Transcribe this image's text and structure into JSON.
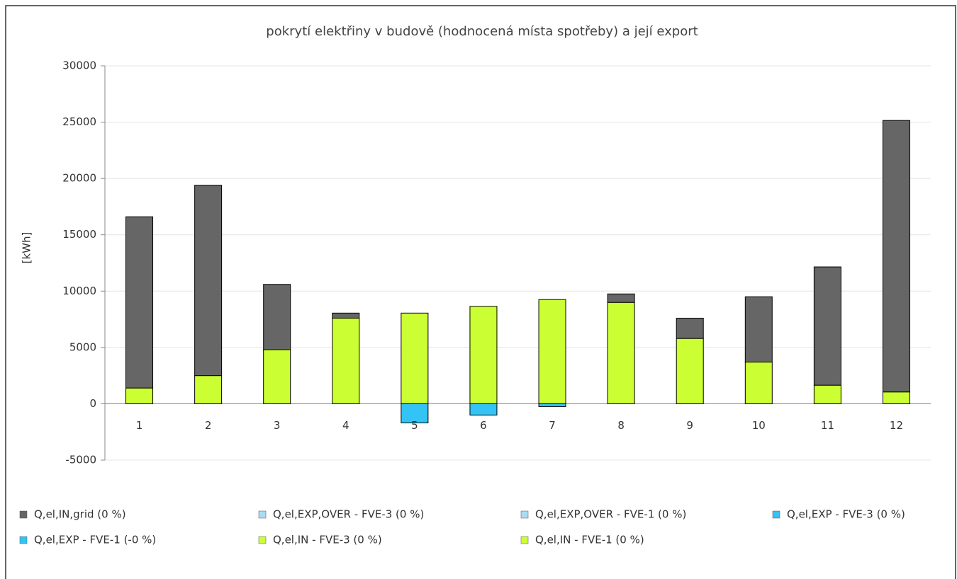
{
  "chart_data": {
    "type": "stacked_bar",
    "title": "pokrytí elektřiny v budově (hodnocená místa spotřeby) a její export",
    "y_label": "[kWh]",
    "categories": [
      "1",
      "2",
      "3",
      "4",
      "5",
      "6",
      "7",
      "8",
      "9",
      "10",
      "11",
      "12"
    ],
    "series": [
      {
        "name": "Q,el,IN,grid (0 %)",
        "color": "#666666",
        "values": [
          15200,
          16900,
          5800,
          450,
          0,
          0,
          0,
          750,
          1800,
          5800,
          10500,
          24100
        ]
      },
      {
        "name": "Q,el,EXP,OVER - FVE-3 (0 %)",
        "color": "#a8dcf2",
        "values": [
          0,
          0,
          0,
          0,
          0,
          0,
          0,
          0,
          0,
          0,
          0,
          0
        ]
      },
      {
        "name": "Q,el,EXP,OVER - FVE-1 (0 %)",
        "color": "#a8dcf2",
        "values": [
          0,
          0,
          0,
          0,
          0,
          0,
          0,
          0,
          0,
          0,
          0,
          0
        ]
      },
      {
        "name": "Q,el,EXP - FVE-3 (0 %)",
        "color": "#33c4f5",
        "values": [
          0,
          0,
          0,
          0,
          0,
          0,
          0,
          0,
          0,
          0,
          0,
          0
        ]
      },
      {
        "name": "Q,el,EXP - FVE-1 (-0 %)",
        "color": "#33c4f5",
        "values": [
          0,
          0,
          0,
          0,
          -1700,
          -1000,
          -250,
          0,
          0,
          0,
          0,
          0
        ]
      },
      {
        "name": "Q,el,IN - FVE-3 (0 %)",
        "color": "#ccff33",
        "values": [
          0,
          0,
          0,
          0,
          0,
          0,
          0,
          0,
          0,
          0,
          0,
          0
        ]
      },
      {
        "name": "Q,el,IN - FVE-1 (0 %)",
        "color": "#ccff33",
        "values": [
          1400,
          2500,
          4800,
          7600,
          8050,
          8650,
          9250,
          9000,
          5800,
          3700,
          1650,
          1050
        ]
      }
    ],
    "ylim": [
      -5000,
      30000
    ],
    "yticks": [
      -5000,
      0,
      5000,
      10000,
      15000,
      20000,
      25000,
      30000
    ],
    "grid": true
  }
}
